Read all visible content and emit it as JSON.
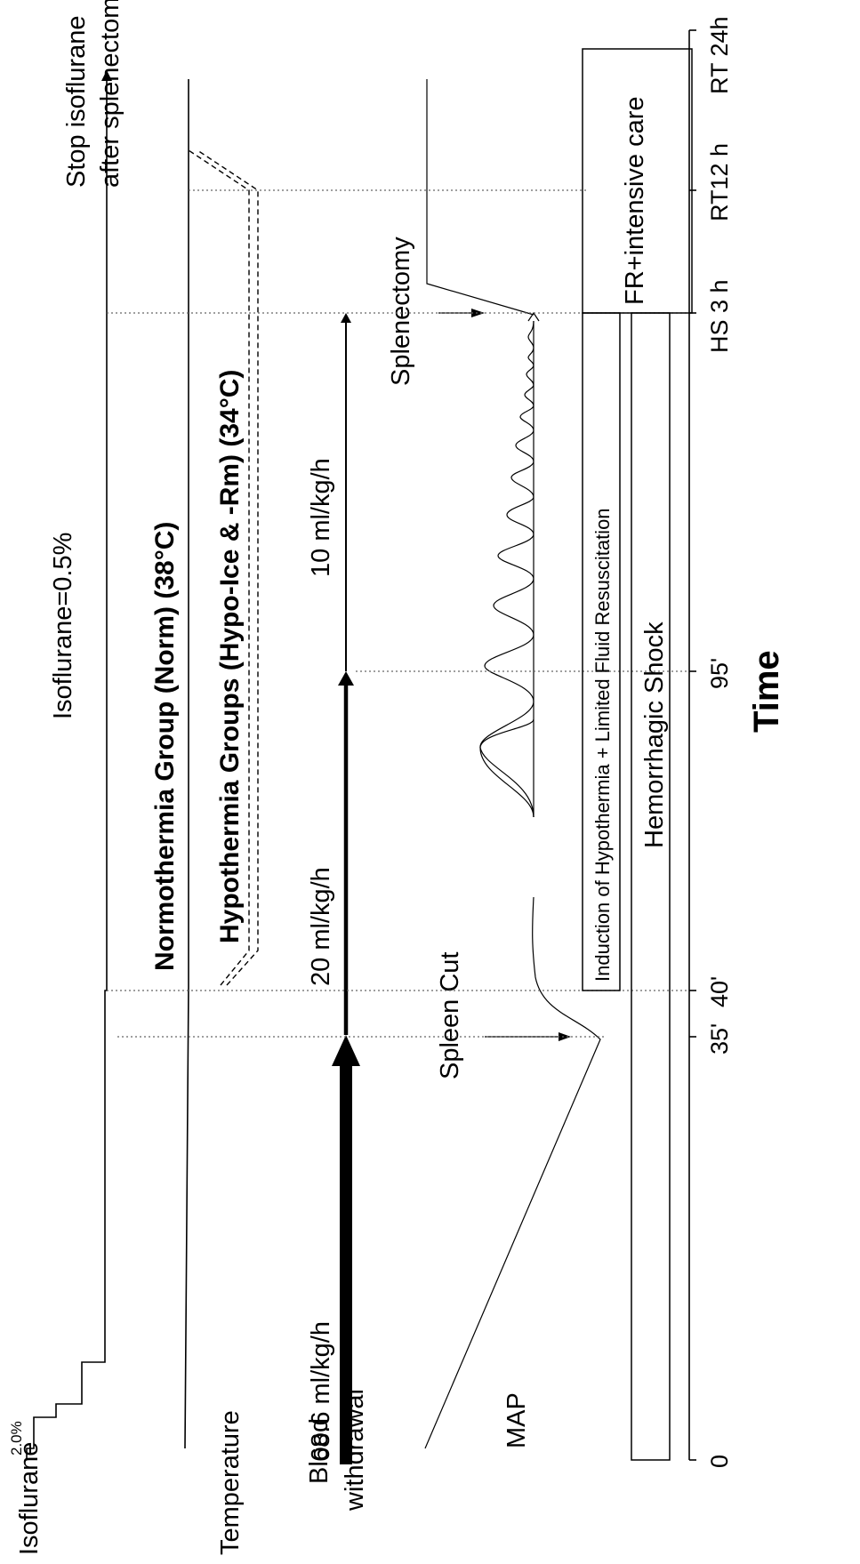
{
  "row_labels": {
    "isoflurane": "Isoflurane",
    "temperature": "Temperature",
    "blood_withdrawal_line1": "Blood",
    "blood_withdrawal_line2": "withdrawal",
    "map": "MAP"
  },
  "isoflurane": {
    "start": "2.0%",
    "maintain": "Isoflurane=0.5%",
    "stop_line1": "Stop isoflurane",
    "stop_line2": "after splenectomy"
  },
  "temperature": {
    "normothermia": "Normothermia Group (Norm) (38°C)",
    "hypothermia": "Hypothermia Groups (Hypo-Ice & -Rm) (34°C)"
  },
  "blood_withdrawal": {
    "rate1": "68.6 ml/kg/h",
    "rate2": "20 ml/kg/h",
    "rate3": "10 ml/kg/h"
  },
  "map": {
    "spleen_cut": "Spleen Cut",
    "splenectomy": "Splenectomy"
  },
  "phases": {
    "induction": "Induction of Hypothermia + Limited Fluid Resuscitation",
    "hemorrhagic_shock": "Hemorrhagic Shock",
    "fr_care": "FR+intensive care"
  },
  "time_axis": {
    "title": "Time",
    "ticks": [
      "0",
      "35'",
      "40'",
      "95'",
      "HS 3 h",
      "RT12 h",
      "RT 24h"
    ]
  }
}
